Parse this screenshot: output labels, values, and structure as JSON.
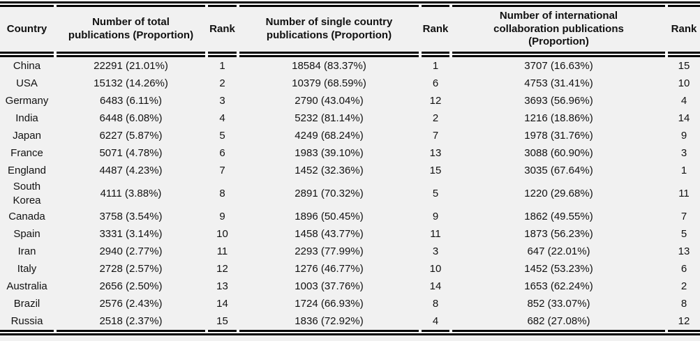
{
  "table": {
    "columns": [
      {
        "label": "Country"
      },
      {
        "label": "Number of total publications (Proportion)"
      },
      {
        "label": "Rank"
      },
      {
        "label": "Number of single country publications (Proportion)"
      },
      {
        "label": "Rank"
      },
      {
        "label": "Number of international collaboration publications (Proportion)"
      },
      {
        "label": "Rank"
      }
    ],
    "rows": [
      [
        "China",
        "22291 (21.01%)",
        "1",
        "18584 (83.37%)",
        "1",
        "3707 (16.63%)",
        "15"
      ],
      [
        "USA",
        "15132 (14.26%)",
        "2",
        "10379 (68.59%)",
        "6",
        "4753 (31.41%)",
        "10"
      ],
      [
        "Germany",
        "6483 (6.11%)",
        "3",
        "2790 (43.04%)",
        "12",
        "3693 (56.96%)",
        "4"
      ],
      [
        "India",
        "6448 (6.08%)",
        "4",
        "5232 (81.14%)",
        "2",
        "1216 (18.86%)",
        "14"
      ],
      [
        "Japan",
        "6227 (5.87%)",
        "5",
        "4249 (68.24%)",
        "7",
        "1978 (31.76%)",
        "9"
      ],
      [
        "France",
        "5071 (4.78%)",
        "6",
        "1983 (39.10%)",
        "13",
        "3088 (60.90%)",
        "3"
      ],
      [
        "England",
        "4487 (4.23%)",
        "7",
        "1452 (32.36%)",
        "15",
        "3035 (67.64%)",
        "1"
      ],
      [
        "South Korea",
        "4111 (3.88%)",
        "8",
        "2891 (70.32%)",
        "5",
        "1220 (29.68%)",
        "11"
      ],
      [
        "Canada",
        "3758 (3.54%)",
        "9",
        "1896 (50.45%)",
        "9",
        "1862 (49.55%)",
        "7"
      ],
      [
        "Spain",
        "3331 (3.14%)",
        "10",
        "1458 (43.77%)",
        "11",
        "1873 (56.23%)",
        "5"
      ],
      [
        "Iran",
        "2940 (2.77%)",
        "11",
        "2293 (77.99%)",
        "3",
        "647 (22.01%)",
        "13"
      ],
      [
        "Italy",
        "2728 (2.57%)",
        "12",
        "1276 (46.77%)",
        "10",
        "1452 (53.23%)",
        "6"
      ],
      [
        "Australia",
        "2656 (2.50%)",
        "13",
        "1003 (37.76%)",
        "14",
        "1653 (62.24%)",
        "2"
      ],
      [
        "Brazil",
        "2576 (2.43%)",
        "14",
        "1724 (66.93%)",
        "8",
        "852 (33.07%)",
        "8"
      ],
      [
        "Russia",
        "2518 (2.37%)",
        "15",
        "1836 (72.92%)",
        "4",
        "682 (27.08%)",
        "12"
      ]
    ],
    "colors": {
      "cell_background": "#f1f1f1",
      "rule": "#000000",
      "text": "#111111",
      "rule_gap": "#ffffff"
    }
  }
}
